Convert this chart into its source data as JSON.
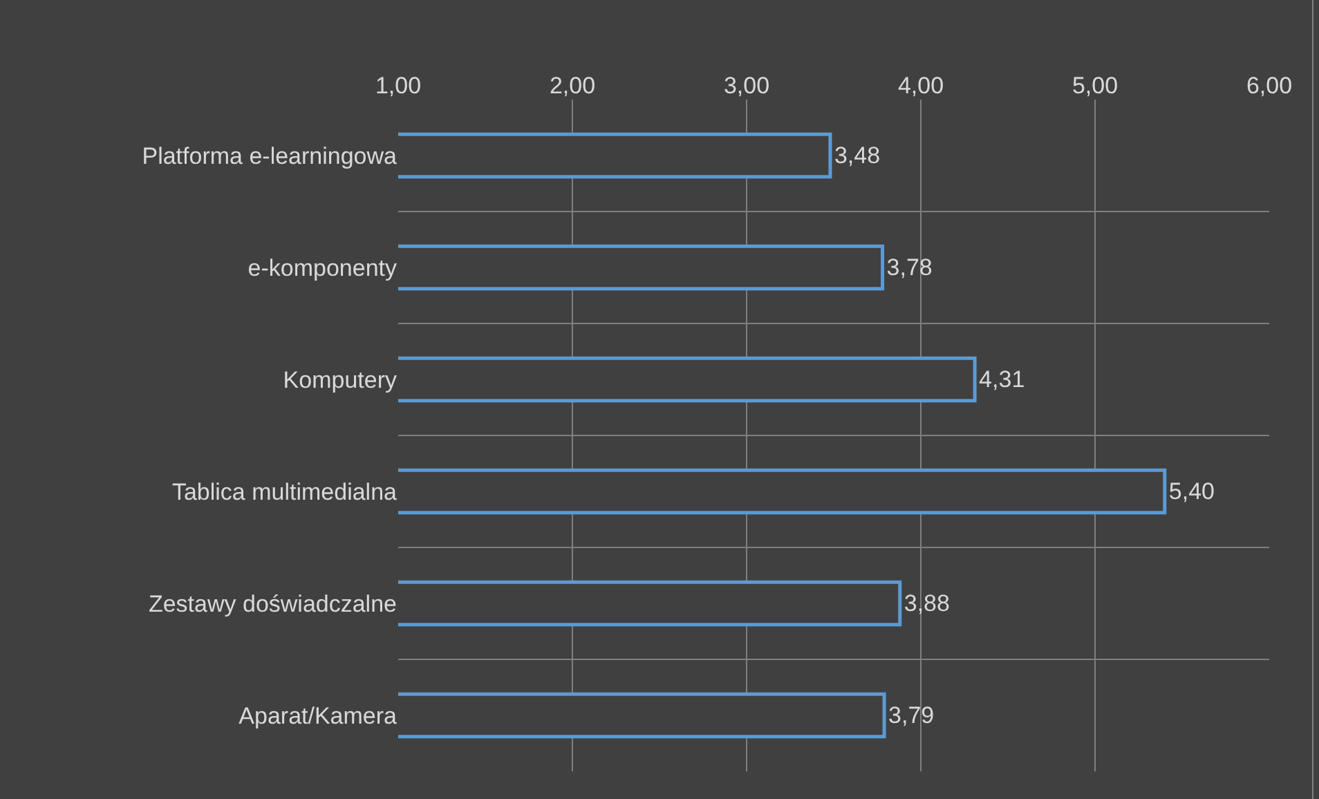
{
  "chart_data": {
    "type": "bar",
    "orientation": "horizontal",
    "categories": [
      "Platforma e-learningowa",
      "e-komponenty",
      "Komputery",
      "Tablica multimedialna",
      "Zestawy doświadczalne",
      "Aparat/Kamera"
    ],
    "values": [
      3.48,
      3.78,
      4.31,
      5.4,
      3.88,
      3.79
    ],
    "value_labels": [
      "3,48",
      "3,78",
      "4,31",
      "5,40",
      "3,88",
      "3,79"
    ],
    "color": "#5b9bd5",
    "xlim": [
      1,
      6
    ],
    "xticks": [
      {
        "value": 1,
        "label": "1,00"
      },
      {
        "value": 2,
        "label": "2,00"
      },
      {
        "value": 3,
        "label": "3,00"
      },
      {
        "value": 4,
        "label": "4,00"
      },
      {
        "value": 5,
        "label": "5,00"
      },
      {
        "value": 6,
        "label": "6,00"
      }
    ],
    "grid": true,
    "legend": false
  }
}
